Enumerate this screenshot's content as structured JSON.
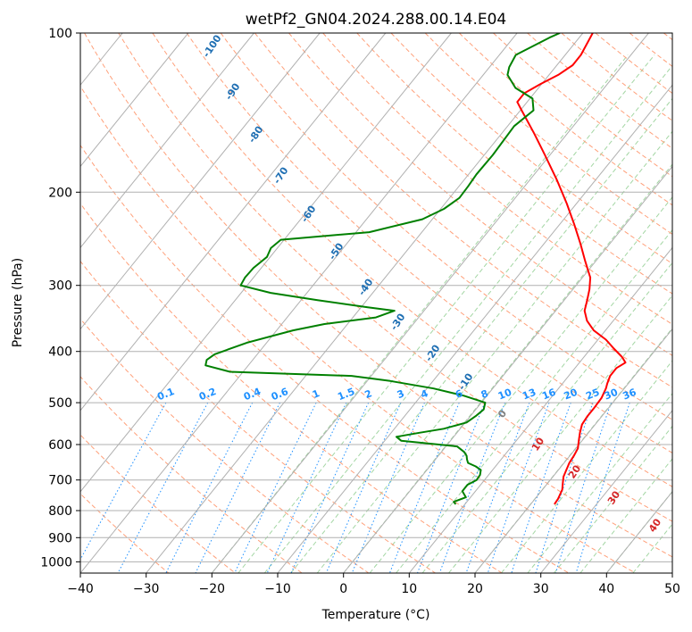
{
  "chart_data": {
    "type": "line",
    "chart_kind": "skew-T log-p diagram",
    "title": "wetPf2_GN04.2024.288.00.14.E04",
    "xlabel": "Temperature (°C)",
    "ylabel": "Pressure (hPa)",
    "xlim": [
      -40,
      50
    ],
    "ylim": [
      1050,
      100
    ],
    "y_scale": "log",
    "x_ticks": [
      "−40",
      "−30",
      "−20",
      "−10",
      "0",
      "10",
      "20",
      "30",
      "40",
      "50"
    ],
    "y_ticks": [
      "100",
      "200",
      "300",
      "400",
      "500",
      "600",
      "700",
      "800",
      "900",
      "1000"
    ],
    "grid": true,
    "series": [
      {
        "color": "#ff0000",
        "points": [
          [
            778,
            23.6
          ],
          [
            760,
            23.5
          ],
          [
            730,
            23.0
          ],
          [
            710,
            22.3
          ],
          [
            690,
            21.6
          ],
          [
            670,
            21.2
          ],
          [
            650,
            20.8
          ],
          [
            630,
            20.6
          ],
          [
            610,
            20.3
          ],
          [
            590,
            19.5
          ],
          [
            570,
            18.7
          ],
          [
            550,
            18.0
          ],
          [
            530,
            17.8
          ],
          [
            510,
            17.8
          ],
          [
            490,
            17.7
          ],
          [
            470,
            17.2
          ],
          [
            460,
            16.8
          ],
          [
            445,
            16.3
          ],
          [
            430,
            16.3
          ],
          [
            420,
            17.0
          ],
          [
            410,
            15.8
          ],
          [
            395,
            13.5
          ],
          [
            380,
            11.2
          ],
          [
            365,
            8.2
          ],
          [
            350,
            6.0
          ],
          [
            335,
            4.4
          ],
          [
            320,
            3.5
          ],
          [
            305,
            2.5
          ],
          [
            290,
            1.2
          ],
          [
            270,
            -1.6
          ],
          [
            250,
            -4.5
          ],
          [
            230,
            -7.8
          ],
          [
            210,
            -11.5
          ],
          [
            190,
            -15.8
          ],
          [
            170,
            -20.8
          ],
          [
            155,
            -25.0
          ],
          [
            140,
            -29.8
          ],
          [
            135,
            -31.5
          ],
          [
            130,
            -31.5
          ],
          [
            125,
            -30.2
          ],
          [
            120,
            -28.6
          ],
          [
            115,
            -27.6
          ],
          [
            110,
            -27.6
          ],
          [
            100,
            -28.5
          ]
        ]
      },
      {
        "color": "#008000",
        "points": [
          [
            778,
            8.6
          ],
          [
            770,
            8.0
          ],
          [
            755,
            9.3
          ],
          [
            735,
            8.0
          ],
          [
            715,
            8.0
          ],
          [
            700,
            8.8
          ],
          [
            685,
            8.7
          ],
          [
            670,
            8.2
          ],
          [
            660,
            7.0
          ],
          [
            650,
            5.4
          ],
          [
            640,
            4.8
          ],
          [
            630,
            4.3
          ],
          [
            620,
            3.5
          ],
          [
            605,
            1.7
          ],
          [
            590,
            -7.5
          ],
          [
            580,
            -8.7
          ],
          [
            570,
            -5.7
          ],
          [
            560,
            -2.5
          ],
          [
            545,
            0.2
          ],
          [
            530,
            0.8
          ],
          [
            515,
            1.2
          ],
          [
            500,
            0.6
          ],
          [
            485,
            -3.5
          ],
          [
            470,
            -9.0
          ],
          [
            455,
            -16.5
          ],
          [
            445,
            -23.0
          ],
          [
            437,
            -42.0
          ],
          [
            425,
            -46.5
          ],
          [
            415,
            -47.0
          ],
          [
            405,
            -46.5
          ],
          [
            385,
            -43.0
          ],
          [
            365,
            -37.5
          ],
          [
            355,
            -33.5
          ],
          [
            345,
            -26.5
          ],
          [
            335,
            -24.5
          ],
          [
            330,
            -29.0
          ],
          [
            320,
            -37.5
          ],
          [
            310,
            -45.5
          ],
          [
            300,
            -51.0
          ],
          [
            290,
            -51.3
          ],
          [
            278,
            -51.2
          ],
          [
            265,
            -50.5
          ],
          [
            255,
            -51.0
          ],
          [
            246,
            -50.5
          ],
          [
            238,
            -38.0
          ],
          [
            225,
            -31.5
          ],
          [
            215,
            -29.5
          ],
          [
            205,
            -28.5
          ],
          [
            195,
            -28.6
          ],
          [
            185,
            -28.8
          ],
          [
            170,
            -28.7
          ],
          [
            150,
            -29.0
          ],
          [
            140,
            -28.0
          ],
          [
            133,
            -29.6
          ],
          [
            127,
            -33.5
          ],
          [
            120,
            -36.3
          ],
          [
            116,
            -37.0
          ],
          [
            110,
            -37.5
          ],
          [
            102,
            -34.5
          ],
          [
            100,
            -33.5
          ]
        ]
      }
    ],
    "dry_adiabat_labels": [
      "-100",
      "-90",
      "-80",
      "-70",
      "-60",
      "-50",
      "-40",
      "-30",
      "-20",
      "-10",
      "0",
      "10",
      "20",
      "30",
      "40"
    ],
    "mixing_ratio_labels": [
      "0.1",
      "0.2",
      "0.4",
      "0.6",
      "1",
      "1.5",
      "2",
      "3",
      "4",
      "6",
      "8",
      "10",
      "13",
      "16",
      "20",
      "25",
      "30",
      "36"
    ],
    "colors": {
      "temperature": "#ff0000",
      "dewpoint": "#008000",
      "isotherms": "#b0b0b0",
      "isobars": "#b0b0b0",
      "dry_adiabats": "#ffa07a",
      "moist_adiabats": "#a3d6a3",
      "mixing_ratio": "#1e90ff",
      "cold_adiabat_labels": "#1f6fb3",
      "warm_adiabat_labels": "#d62728",
      "zero_label": "#808080"
    }
  }
}
